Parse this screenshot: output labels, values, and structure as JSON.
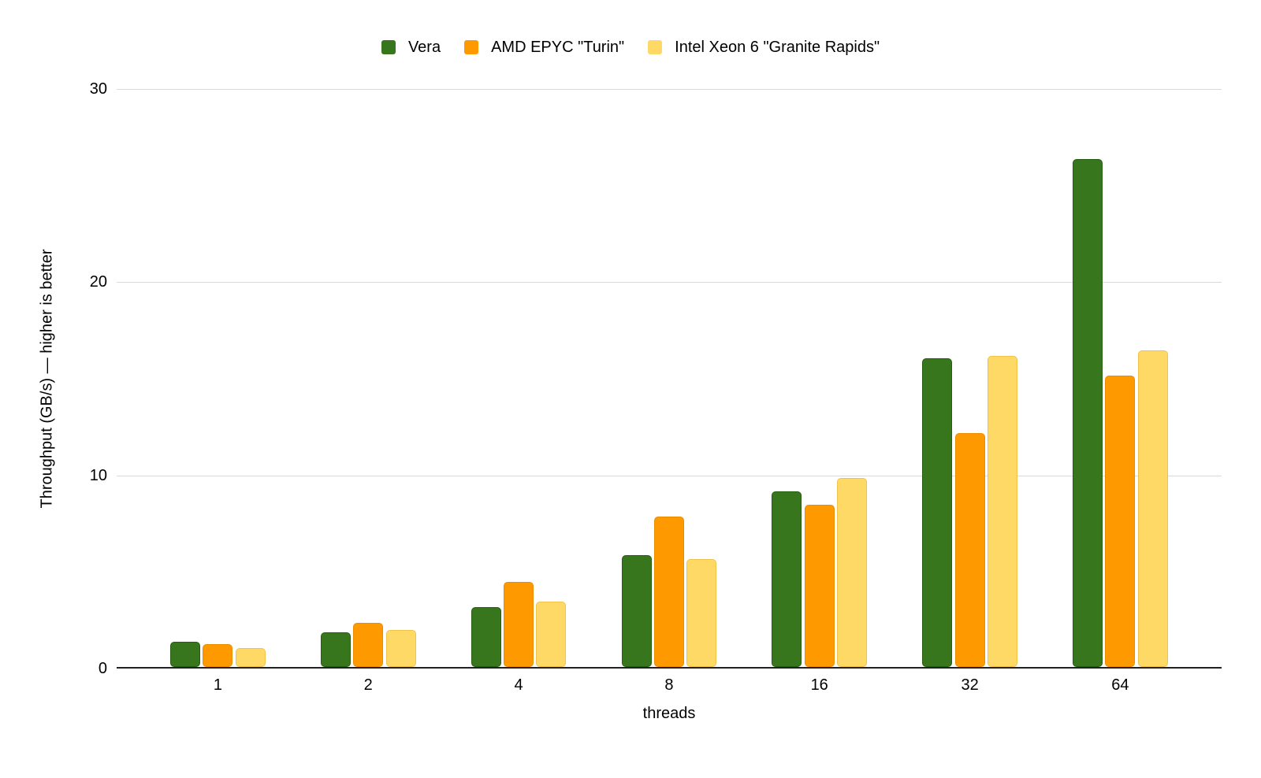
{
  "chart_data": {
    "type": "bar",
    "title": "",
    "categories": [
      "1",
      "2",
      "4",
      "8",
      "16",
      "32",
      "64"
    ],
    "series": [
      {
        "name": "Vera",
        "color": "#38761d",
        "border_color": "#255e10",
        "values": [
          1.3,
          1.8,
          3.1,
          5.8,
          9.1,
          16.0,
          26.3
        ]
      },
      {
        "name": "AMD EPYC \"Turin\"",
        "color": "#ff9900",
        "border_color": "#e98c00",
        "values": [
          1.2,
          2.3,
          4.4,
          7.8,
          8.4,
          12.1,
          15.1
        ]
      },
      {
        "name": "Intel Xeon 6 \"Granite Rapids\"",
        "color": "#ffd966",
        "border_color": "#f0c24a",
        "values": [
          1.0,
          1.9,
          3.4,
          5.6,
          9.8,
          16.1,
          16.4
        ]
      }
    ],
    "xlabel": "threads",
    "ylabel": "Throughput (GB/s) — higher is better",
    "yticks": [
      0,
      10,
      20,
      30
    ],
    "ylim": [
      0,
      30
    ],
    "grid": "horizontal",
    "gridline_color": "#d9d9d9",
    "axis_line_color": "#212121",
    "text_color": "#000000",
    "background": "#ffffff",
    "legend_position": "top-center"
  }
}
